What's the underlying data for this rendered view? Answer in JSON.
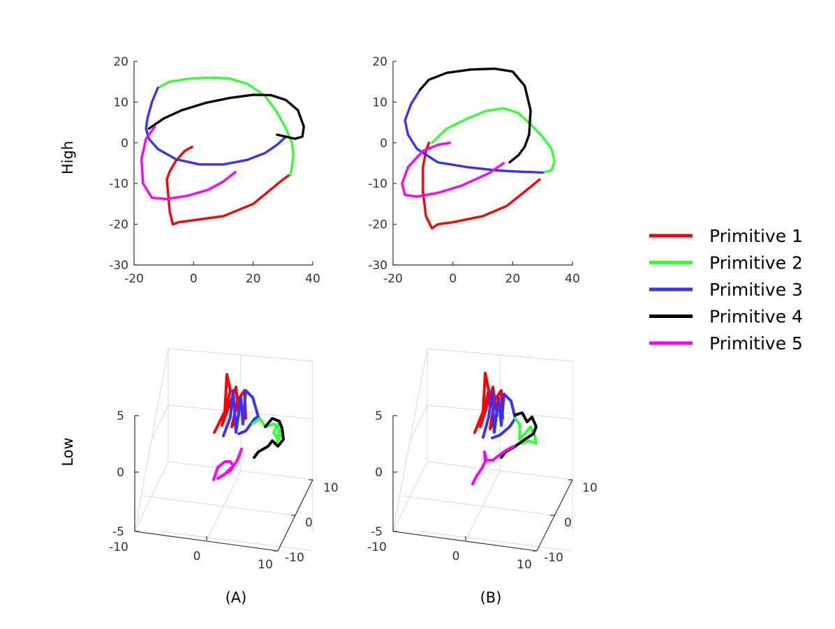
{
  "colors": {
    "p1": "#ff0000",
    "p2": "#33ff33",
    "p3": "#3333ff",
    "p4": "#000000",
    "p5": "#ff00ff"
  },
  "row_labels": [
    "High",
    "Low"
  ],
  "column_labels": [
    "(A)",
    "(B)"
  ],
  "legend": [
    "Primitive 1",
    "Primitive 2",
    "Primitive 3",
    "Primitive 4",
    "Primitive 5"
  ],
  "chart_data": [
    {
      "type": "line",
      "panel": "high-A",
      "xlim": [
        -20,
        40
      ],
      "ylim": [
        -30,
        20
      ],
      "xticks": [
        "-20",
        "0",
        "20",
        "40"
      ],
      "yticks": [
        "20",
        "10",
        "0",
        "-10",
        "-20",
        "-30"
      ],
      "series": [
        {
          "name": "Primitive 1",
          "color": "p1",
          "x": [
            -0.5,
            -3,
            -6,
            -8,
            -9,
            -8.5,
            -8,
            -7,
            -5,
            0,
            10,
            20,
            25,
            30,
            32
          ],
          "y": [
            -1,
            -2,
            -4.5,
            -7,
            -9,
            -13,
            -17,
            -20,
            -19.5,
            -19,
            -18,
            -15,
            -12,
            -9,
            -8
          ]
        },
        {
          "name": "Primitive 2",
          "color": "p2",
          "x": [
            -12,
            -8,
            -2,
            5,
            12,
            18,
            24,
            28,
            31,
            33,
            33.5,
            33,
            32.5
          ],
          "y": [
            13.5,
            15,
            15.7,
            16,
            15.8,
            14.5,
            11.5,
            7.5,
            3.5,
            0,
            -3,
            -6,
            -8
          ]
        },
        {
          "name": "Primitive 3",
          "color": "p3",
          "x": [
            -12,
            -14,
            -15.5,
            -16,
            -15,
            -12,
            -6,
            2,
            10,
            18,
            24,
            28,
            31
          ],
          "y": [
            13.5,
            10,
            6,
            3.5,
            1,
            -1.5,
            -4,
            -5.3,
            -5.3,
            -4.2,
            -2.5,
            -0.5,
            1.5
          ]
        },
        {
          "name": "Primitive 4",
          "color": "p4",
          "x": [
            -15,
            -10,
            -4,
            4,
            12,
            20,
            26,
            31,
            35,
            37,
            36.5,
            34,
            31,
            28
          ],
          "y": [
            3.5,
            6,
            8,
            9.8,
            11,
            11.8,
            11.7,
            10.5,
            8,
            4,
            1.5,
            1,
            1.5,
            2
          ]
        },
        {
          "name": "Primitive 5",
          "color": "p5",
          "x": [
            -13,
            -16,
            -17.5,
            -17,
            -14,
            -9,
            -2,
            5,
            10,
            14
          ],
          "y": [
            4,
            1,
            -4,
            -10,
            -13.5,
            -13.8,
            -13,
            -11.5,
            -9.5,
            -7.2
          ]
        }
      ]
    },
    {
      "type": "line",
      "panel": "high-B",
      "xlim": [
        -20,
        40
      ],
      "ylim": [
        -30,
        20
      ],
      "xticks": [
        "-20",
        "0",
        "20",
        "40"
      ],
      "yticks": [
        "20",
        "10",
        "0",
        "-10",
        "-20",
        "-30"
      ],
      "series": [
        {
          "name": "Primitive 1",
          "color": "p1",
          "x": [
            -8,
            -9,
            -10,
            -10,
            -9,
            -7,
            -5,
            0,
            10,
            18,
            24,
            29
          ],
          "y": [
            0,
            -2,
            -6,
            -12,
            -18,
            -21,
            -20,
            -19.5,
            -18,
            -15.5,
            -12,
            -9
          ]
        },
        {
          "name": "Primitive 2",
          "color": "p2",
          "x": [
            -7,
            -2,
            5,
            11,
            17,
            22,
            26,
            30,
            33,
            34,
            33,
            30
          ],
          "y": [
            0,
            3.5,
            6,
            7.8,
            8.5,
            7.3,
            4.5,
            1.5,
            -1.5,
            -4.5,
            -6.8,
            -7.3
          ]
        },
        {
          "name": "Primitive 3",
          "color": "p3",
          "x": [
            -11,
            -14,
            -16,
            -15,
            -12,
            -5,
            5,
            15,
            23,
            30
          ],
          "y": [
            13,
            9.5,
            5.5,
            2,
            -1.5,
            -4.8,
            -6,
            -6.8,
            -7.1,
            -7.3
          ]
        },
        {
          "name": "Primitive 4",
          "color": "p4",
          "x": [
            -11,
            -8,
            -2,
            6,
            14,
            20,
            24,
            26,
            25.5,
            24,
            22,
            19
          ],
          "y": [
            13,
            15.5,
            17.2,
            18,
            18.2,
            17.5,
            14,
            8,
            2,
            -1,
            -3,
            -4.8
          ]
        },
        {
          "name": "Primitive 5",
          "color": "p5",
          "x": [
            -1,
            -5,
            -10,
            -15,
            -17,
            -16,
            -12,
            -5,
            3,
            12,
            17
          ],
          "y": [
            0,
            -0.5,
            -2,
            -6,
            -10,
            -12.8,
            -13.2,
            -12.3,
            -10.5,
            -7.5,
            -5
          ]
        }
      ]
    },
    {
      "type": "line",
      "panel": "low-A",
      "xlim": [
        -10,
        10
      ],
      "ylim": [
        -10,
        10
      ],
      "zlim": [
        -5,
        5
      ],
      "xticks": [
        "-10",
        "0",
        "10"
      ],
      "yticks": [
        "10",
        "0",
        "-10"
      ],
      "zticks": [
        "5",
        "0",
        "-5"
      ]
    },
    {
      "type": "line",
      "panel": "low-B",
      "xlim": [
        -10,
        10
      ],
      "ylim": [
        -10,
        10
      ],
      "zlim": [
        -5,
        5
      ],
      "xticks": [
        "-10",
        "0",
        "10"
      ],
      "yticks": [
        "10",
        "0",
        "-10"
      ],
      "zticks": [
        "5",
        "0",
        "-5"
      ]
    }
  ]
}
